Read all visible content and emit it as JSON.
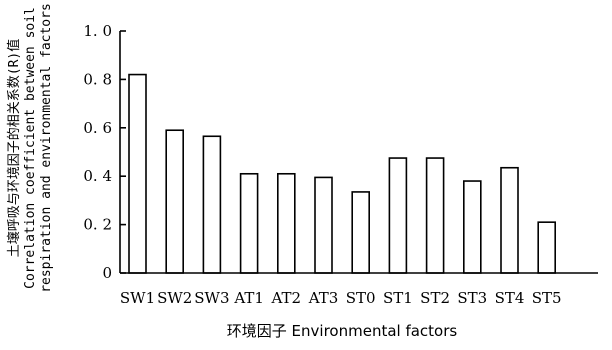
{
  "chart_data": {
    "type": "bar",
    "categories": [
      "SW1",
      "SW2",
      "SW3",
      "AT1",
      "AT2",
      "AT3",
      "ST0",
      "ST1",
      "ST2",
      "ST3",
      "ST4",
      "ST5"
    ],
    "values": [
      0.82,
      0.59,
      0.565,
      0.41,
      0.41,
      0.395,
      0.335,
      0.475,
      0.475,
      0.38,
      0.435,
      0.21
    ],
    "ylim": [
      0,
      1.0
    ],
    "yticks": [
      0,
      0.2,
      0.4,
      0.6,
      0.8,
      1.0
    ],
    "ytick_labels": [
      "0",
      "0. 2",
      "0. 4",
      "0. 6",
      "0. 8",
      "1. 0"
    ],
    "xlabel": "环境因子  Environmental factors",
    "ylabel_lines": [
      "土壤呼吸与环境因子的相关系数(R)值",
      "Correlation coefficient between soil",
      "respiration and environmental factors"
    ],
    "grid": false,
    "bar_fill": "#ffffff",
    "bar_stroke": "#000000"
  }
}
